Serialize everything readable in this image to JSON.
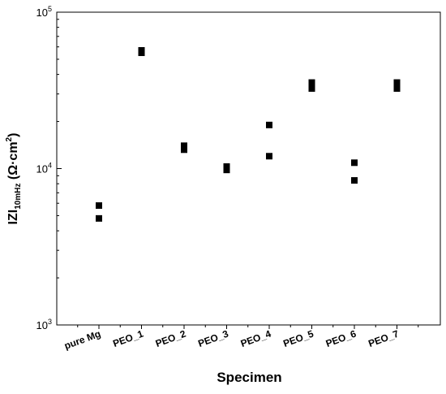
{
  "chart_data": {
    "type": "scatter",
    "title": "",
    "xlabel": "Specimen",
    "ylabel": {
      "main": "IZI",
      "subscript": "10mHz",
      "unit_prefix": "(Ω·cm",
      "unit_sup": "2",
      "unit_suffix": ")"
    },
    "yscale": "log",
    "ylim": [
      1000,
      100000
    ],
    "y_ticks": [
      {
        "value": 1000,
        "base": "10",
        "exp": "3"
      },
      {
        "value": 10000,
        "base": "10",
        "exp": "4"
      },
      {
        "value": 100000,
        "base": "10",
        "exp": "5"
      }
    ],
    "categories": [
      "pure Mg",
      "PEO_1",
      "PEO_2",
      "PEO_3",
      "PEO_4",
      "PEO_5",
      "PEO_6",
      "PEO_7"
    ],
    "points": [
      {
        "category": "pure Mg",
        "values": [
          5800,
          4800
        ]
      },
      {
        "category": "PEO_1",
        "values": [
          57000,
          55000
        ]
      },
      {
        "category": "PEO_2",
        "values": [
          14000,
          13200
        ]
      },
      {
        "category": "PEO_3",
        "values": [
          10300,
          9800
        ]
      },
      {
        "category": "PEO_4",
        "values": [
          19000,
          12000
        ]
      },
      {
        "category": "PEO_5",
        "values": [
          35500,
          32500
        ]
      },
      {
        "category": "PEO_6",
        "values": [
          10900,
          8400
        ]
      },
      {
        "category": "PEO_7",
        "values": [
          35500,
          32500
        ]
      }
    ],
    "marker": "square",
    "marker_color": "#000000",
    "grid": false,
    "legend": "none"
  }
}
